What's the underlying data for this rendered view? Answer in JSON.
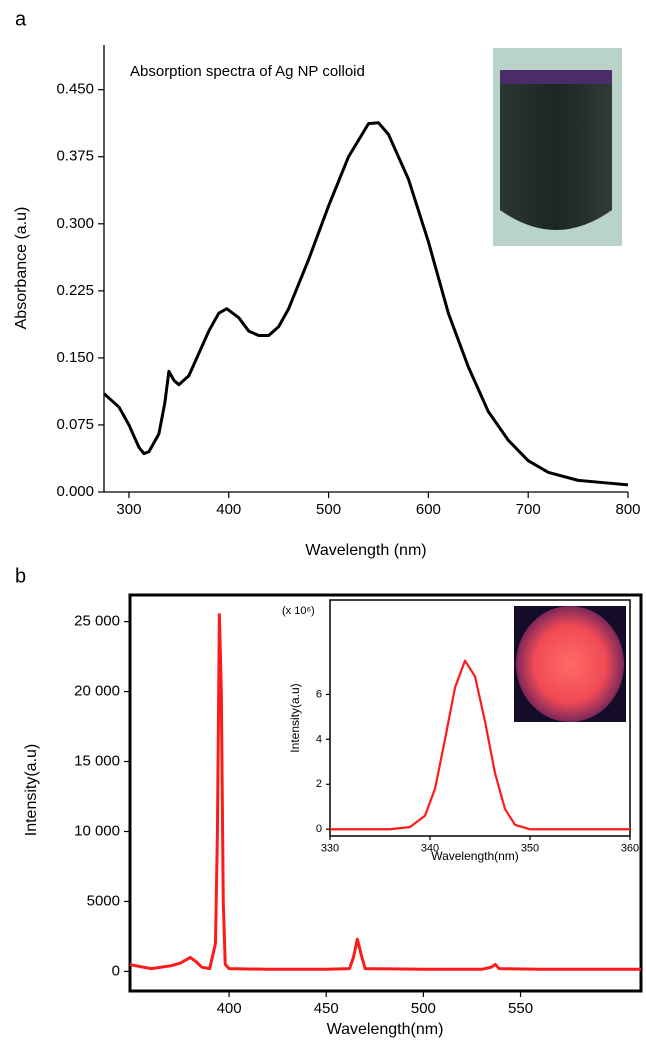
{
  "chart_data": [
    {
      "type": "line",
      "panel_label": "a",
      "annotation": "Absorption spectra of Ag NP colloid",
      "x_label": "Wavelength (nm)",
      "y_label": "Absorbance (a.u)",
      "color": "#000000",
      "xlim": [
        275,
        800
      ],
      "ylim": [
        0,
        0.5
      ],
      "xticks": [
        300,
        400,
        500,
        600,
        700,
        800
      ],
      "yticks": [
        {
          "value": 0,
          "label": "0.000"
        },
        {
          "value": 0.075,
          "label": "0.075"
        },
        {
          "value": 0.15,
          "label": "0.150"
        },
        {
          "value": 0.225,
          "label": "0.225"
        },
        {
          "value": 0.3,
          "label": "0.300"
        },
        {
          "value": 0.375,
          "label": "0.375"
        },
        {
          "value": 0.45,
          "label": "0.450"
        }
      ],
      "x": [
        275,
        290,
        300,
        310,
        315,
        320,
        330,
        336,
        340,
        345,
        350,
        360,
        370,
        380,
        390,
        398,
        410,
        420,
        430,
        440,
        450,
        460,
        480,
        500,
        520,
        540,
        550,
        560,
        580,
        600,
        620,
        640,
        660,
        680,
        700,
        720,
        750,
        780,
        800
      ],
      "values": [
        0.11,
        0.095,
        0.075,
        0.05,
        0.043,
        0.045,
        0.065,
        0.1,
        0.135,
        0.125,
        0.12,
        0.13,
        0.155,
        0.18,
        0.2,
        0.205,
        0.195,
        0.18,
        0.175,
        0.175,
        0.185,
        0.205,
        0.26,
        0.32,
        0.375,
        0.412,
        0.413,
        0.4,
        0.35,
        0.28,
        0.2,
        0.14,
        0.09,
        0.058,
        0.035,
        0.022,
        0.013,
        0.01,
        0.008
      ]
    },
    {
      "type": "line",
      "panel_label": "b",
      "x_label": "Wavelength(nm)",
      "y_label": "Intensity(a.u)",
      "color": "#ff1a1a",
      "xlim": [
        349,
        612
      ],
      "ylim": [
        -1400,
        26900
      ],
      "xticks": [
        400,
        450,
        500,
        550
      ],
      "yticks": [
        0,
        5000,
        {
          "value": 10000,
          "label": "10 000"
        },
        {
          "value": 15000,
          "label": "15 000"
        },
        {
          "value": 20000,
          "label": "20 000"
        },
        {
          "value": 25000,
          "label": "25 000"
        }
      ],
      "x": [
        349,
        352,
        360,
        370,
        375,
        380,
        383,
        386,
        390,
        393,
        394,
        395,
        396,
        397,
        398,
        400,
        420,
        450,
        462,
        464,
        466,
        468,
        470,
        500,
        530,
        535,
        537,
        539,
        560,
        612
      ],
      "values": [
        500,
        400,
        200,
        400,
        600,
        1000,
        700,
        300,
        200,
        2000,
        10000,
        25500,
        20000,
        5000,
        500,
        200,
        150,
        150,
        200,
        1000,
        2300,
        1200,
        200,
        150,
        150,
        300,
        500,
        200,
        150,
        150
      ]
    },
    {
      "type": "line",
      "annotation": "(x 10⁶)",
      "x_label": "Wavelength(nm)",
      "y_label": "Intensity(a.u)",
      "color": "#ff1a1a",
      "xlim": [
        330,
        360
      ],
      "ylim": [
        -0.3,
        10.2
      ],
      "xticks": [
        330,
        340,
        350,
        360
      ],
      "yticks": [
        0,
        2,
        4,
        6
      ],
      "x": [
        330,
        336,
        338,
        339.5,
        340.5,
        341.5,
        342.5,
        343.5,
        344.5,
        345.5,
        346.5,
        347.5,
        348.5,
        350,
        360
      ],
      "values": [
        0,
        0,
        0.1,
        0.6,
        1.8,
        4,
        6.3,
        7.5,
        6.8,
        4.8,
        2.5,
        0.9,
        0.2,
        0,
        0
      ]
    }
  ]
}
